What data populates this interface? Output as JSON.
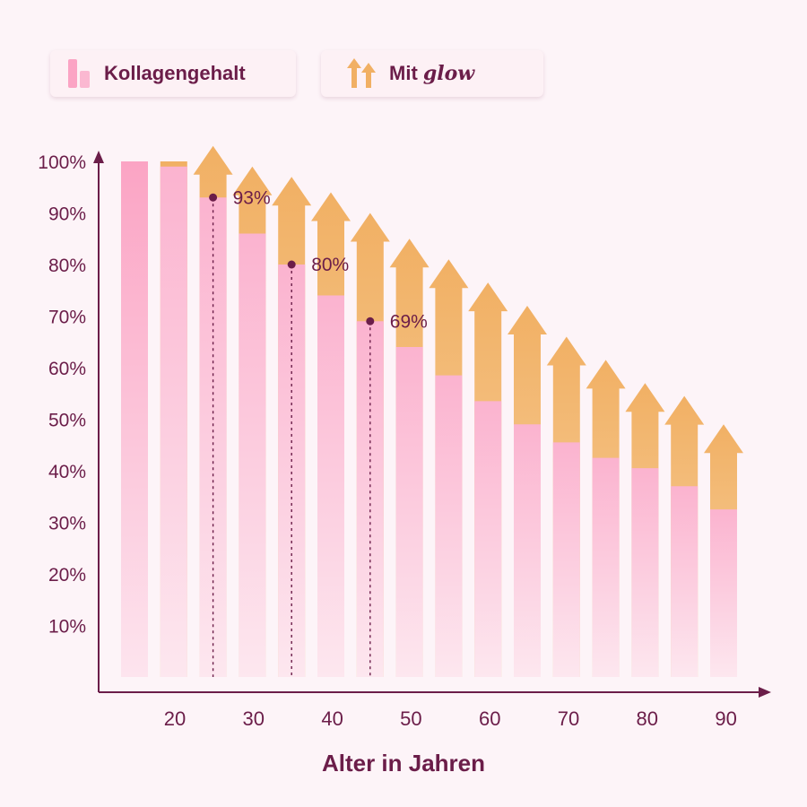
{
  "legend": {
    "collagen_label": "Kollagengehalt",
    "glow_prefix": "Mit",
    "glow_word": "glow"
  },
  "colors": {
    "text": "#6b1d49",
    "pink_top": "#fbb3cf",
    "pink_bottom": "#fde7ef",
    "pink_first": "#fba4c4",
    "orange_top": "#f1b064",
    "orange_bottom": "#f8d6a8",
    "axis": "#6b1d49"
  },
  "chart_data": {
    "type": "bar",
    "xlabel": "Alter in Jahren",
    "ylabel": "",
    "ylim": [
      0,
      100
    ],
    "x_ticks": [
      "20",
      "30",
      "40",
      "50",
      "60",
      "70",
      "80",
      "90"
    ],
    "y_ticks": [
      "10%",
      "20%",
      "30%",
      "40%",
      "50%",
      "60%",
      "70%",
      "80%",
      "90%",
      "100%"
    ],
    "series": [
      {
        "name": "Kollagengehalt",
        "values": [
          100,
          99,
          93,
          86,
          80,
          74,
          69,
          64,
          58.5,
          53.5,
          49,
          45.5,
          42.5,
          40.5,
          37,
          32.5
        ]
      },
      {
        "name": "Mit glow",
        "values": [
          100,
          100,
          103,
          99,
          97,
          94,
          90,
          85,
          81,
          76.5,
          72,
          66,
          61.5,
          57,
          54.5,
          49
        ]
      }
    ],
    "annotations": [
      {
        "bar_index": 2,
        "value": 93,
        "label": "93%"
      },
      {
        "bar_index": 4,
        "value": 80,
        "label": "80%"
      },
      {
        "bar_index": 6,
        "value": 69,
        "label": "69%"
      }
    ]
  }
}
